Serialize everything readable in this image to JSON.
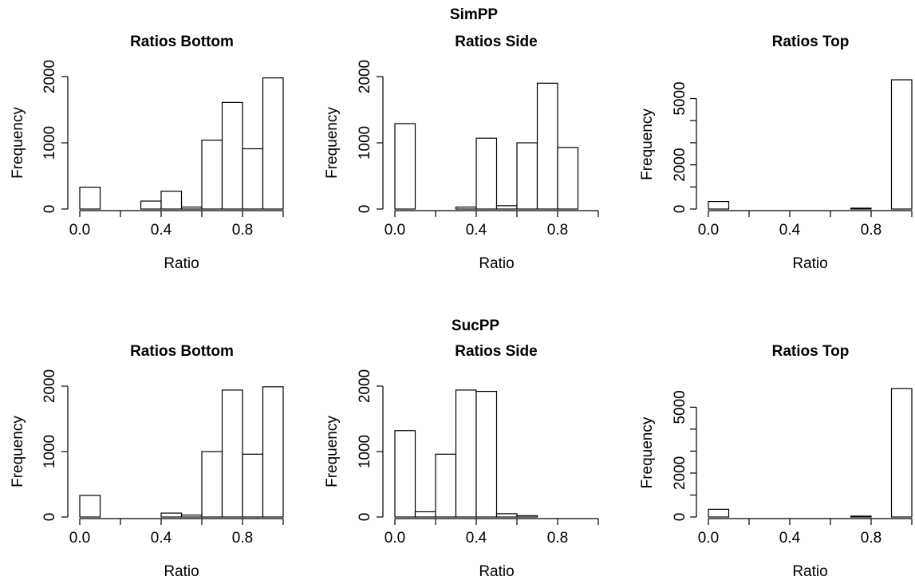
{
  "group_titles": [
    "SimPP",
    "SucPP"
  ],
  "chart_data": [
    {
      "type": "bar",
      "group": "SimPP",
      "title": "Ratios Bottom",
      "xlabel": "Ratio",
      "ylabel": "Frequency",
      "bin_edges": [
        0,
        0.1,
        0.2,
        0.3,
        0.4,
        0.5,
        0.6,
        0.7,
        0.8,
        0.9,
        1.0
      ],
      "values": [
        330,
        0,
        0,
        120,
        270,
        30,
        1040,
        1610,
        910,
        1980
      ],
      "xlim": [
        0,
        1.0
      ],
      "ylim": [
        0,
        2000
      ],
      "xticks": [
        0.0,
        0.4,
        0.8
      ],
      "xtick_labels": [
        "0.0",
        "0.4",
        "0.8"
      ],
      "yticks": [
        0,
        1000,
        2000
      ],
      "ytick_labels": [
        "0",
        "1000",
        "2000"
      ]
    },
    {
      "type": "bar",
      "group": "SimPP",
      "title": "Ratios Side",
      "xlabel": "Ratio",
      "ylabel": "Frequency",
      "bin_edges": [
        0,
        0.1,
        0.2,
        0.3,
        0.4,
        0.5,
        0.6,
        0.7,
        0.8,
        0.9,
        1.0
      ],
      "values": [
        1290,
        0,
        0,
        30,
        1070,
        50,
        1000,
        1900,
        930,
        0
      ],
      "xlim": [
        0,
        1.0
      ],
      "ylim": [
        0,
        2000
      ],
      "xticks": [
        0.0,
        0.4,
        0.8
      ],
      "xtick_labels": [
        "0.0",
        "0.4",
        "0.8"
      ],
      "yticks": [
        0,
        1000,
        2000
      ],
      "ytick_labels": [
        "0",
        "1000",
        "2000"
      ]
    },
    {
      "type": "bar",
      "group": "SimPP",
      "title": "Ratios Top",
      "xlabel": "Ratio",
      "ylabel": "Frequency",
      "bin_edges": [
        0,
        0.1,
        0.2,
        0.3,
        0.4,
        0.5,
        0.6,
        0.7,
        0.8,
        0.9,
        1.0
      ],
      "values": [
        340,
        0,
        0,
        0,
        0,
        0,
        0,
        40,
        0,
        5850
      ],
      "xlim": [
        0,
        1.0
      ],
      "ylim": [
        0,
        5850
      ],
      "xticks": [
        0.0,
        0.4,
        0.8
      ],
      "xtick_labels": [
        "0.0",
        "0.4",
        "0.8"
      ],
      "yticks": [
        0,
        2000,
        5000
      ],
      "ytick_labels": [
        "0",
        "2000",
        "5000"
      ],
      "extra_yticks_unlabeled": [
        1000,
        3000,
        4000
      ]
    },
    {
      "type": "bar",
      "group": "SucPP",
      "title": "Ratios Bottom",
      "xlabel": "Ratio",
      "ylabel": "Frequency",
      "bin_edges": [
        0,
        0.1,
        0.2,
        0.3,
        0.4,
        0.5,
        0.6,
        0.7,
        0.8,
        0.9,
        1.0
      ],
      "values": [
        330,
        0,
        0,
        0,
        60,
        30,
        1000,
        1940,
        960,
        1990
      ],
      "xlim": [
        0,
        1.0
      ],
      "ylim": [
        0,
        2000
      ],
      "xticks": [
        0.0,
        0.4,
        0.8
      ],
      "xtick_labels": [
        "0.0",
        "0.4",
        "0.8"
      ],
      "yticks": [
        0,
        1000,
        2000
      ],
      "ytick_labels": [
        "0",
        "1000",
        "2000"
      ]
    },
    {
      "type": "bar",
      "group": "SucPP",
      "title": "Ratios Side",
      "xlabel": "Ratio",
      "ylabel": "Frequency",
      "bin_edges": [
        0,
        0.1,
        0.2,
        0.3,
        0.4,
        0.5,
        0.6,
        0.7,
        0.8,
        0.9,
        1.0
      ],
      "values": [
        1320,
        80,
        960,
        1940,
        1920,
        50,
        20,
        0,
        0,
        0
      ],
      "xlim": [
        0,
        1.0
      ],
      "ylim": [
        0,
        2000
      ],
      "xticks": [
        0.0,
        0.4,
        0.8
      ],
      "xtick_labels": [
        "0.0",
        "0.4",
        "0.8"
      ],
      "yticks": [
        0,
        1000,
        2000
      ],
      "ytick_labels": [
        "0",
        "1000",
        "2000"
      ]
    },
    {
      "type": "bar",
      "group": "SucPP",
      "title": "Ratios Top",
      "xlabel": "Ratio",
      "ylabel": "Frequency",
      "bin_edges": [
        0,
        0.1,
        0.2,
        0.3,
        0.4,
        0.5,
        0.6,
        0.7,
        0.8,
        0.9,
        1.0
      ],
      "values": [
        350,
        0,
        0,
        0,
        0,
        0,
        0,
        40,
        0,
        5850
      ],
      "xlim": [
        0,
        1.0
      ],
      "ylim": [
        0,
        5850
      ],
      "xticks": [
        0.0,
        0.4,
        0.8
      ],
      "xtick_labels": [
        "0.0",
        "0.4",
        "0.8"
      ],
      "yticks": [
        0,
        2000,
        5000
      ],
      "ytick_labels": [
        "0",
        "2000",
        "5000"
      ],
      "extra_yticks_unlabeled": [
        1000,
        3000,
        4000
      ]
    }
  ]
}
